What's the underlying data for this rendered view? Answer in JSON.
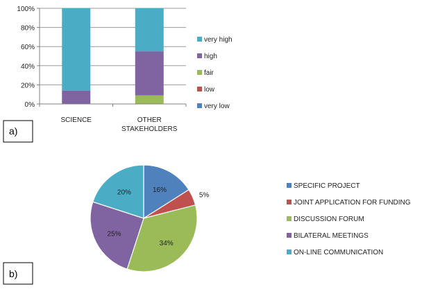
{
  "chart_data": [
    {
      "panel_label": "a)",
      "type": "bar",
      "stacked": true,
      "percent_stacked": true,
      "categories": [
        [
          "SCIENCE"
        ],
        [
          "OTHER",
          "STAKEHOLDERS"
        ]
      ],
      "ylim": [
        0,
        100
      ],
      "yticks": [
        "0%",
        "20%",
        "40%",
        "60%",
        "80%",
        "100%"
      ],
      "grid": true,
      "legend_position": "right",
      "series": [
        {
          "name": "very low",
          "color": "#4F81BD",
          "values": [
            0,
            0
          ]
        },
        {
          "name": "low",
          "color": "#C0504D",
          "values": [
            0,
            0
          ]
        },
        {
          "name": "fair",
          "color": "#9BBB59",
          "values": [
            0,
            9
          ]
        },
        {
          "name": "high",
          "color": "#8064A2",
          "values": [
            14,
            46
          ]
        },
        {
          "name": "very high",
          "color": "#4BACC6",
          "values": [
            86,
            45
          ]
        }
      ],
      "legend_order": [
        "very high",
        "high",
        "fair",
        "low",
        "very low"
      ]
    },
    {
      "panel_label": "b)",
      "type": "pie",
      "legend_position": "right",
      "slices": [
        {
          "name": "SPECIFIC PROJECT",
          "value": 16,
          "label": "16%",
          "color": "#4F81BD"
        },
        {
          "name": "JOINT APPLICATION FOR FUNDING",
          "value": 5,
          "label": "5%",
          "color": "#C0504D"
        },
        {
          "name": "DISCUSSION FORUM",
          "value": 34,
          "label": "34%",
          "color": "#9BBB59"
        },
        {
          "name": "BILATERAL MEETINGS",
          "value": 25,
          "label": "25%",
          "color": "#8064A2"
        },
        {
          "name": "ON-LINE COMMUNICATION",
          "value": 20,
          "label": "20%",
          "color": "#4BACC6"
        }
      ]
    }
  ]
}
